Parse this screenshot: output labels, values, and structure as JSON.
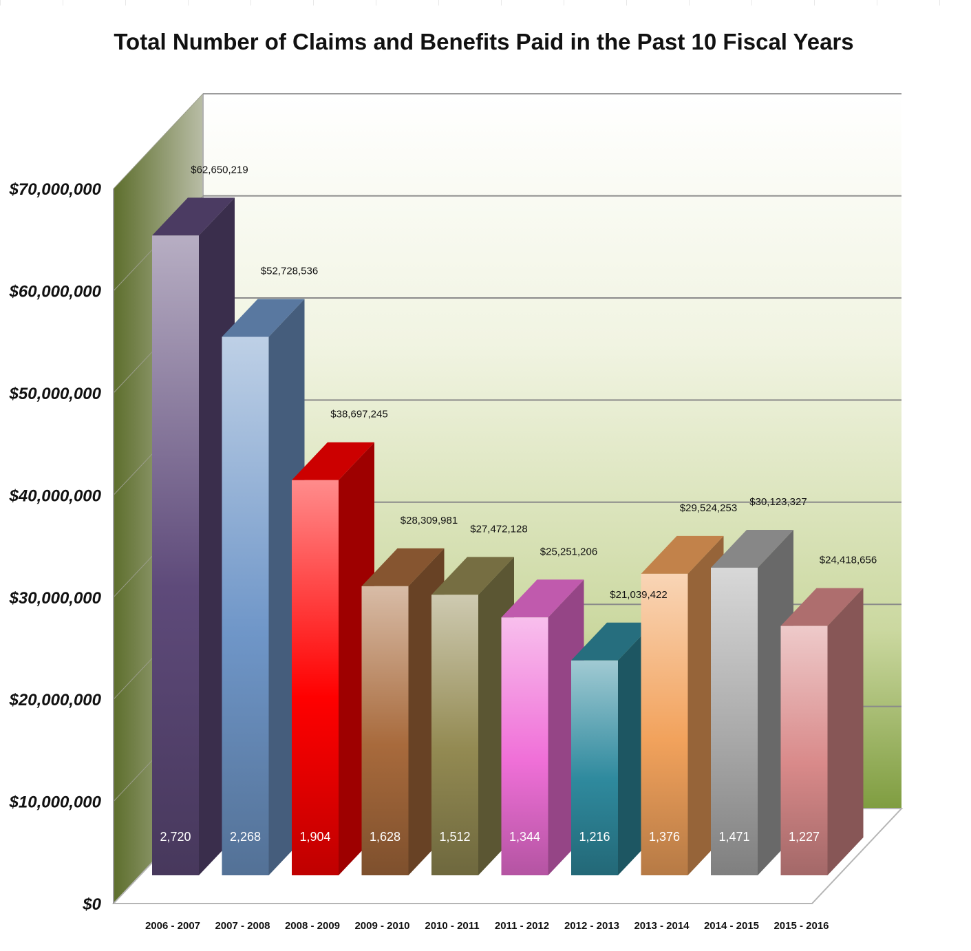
{
  "chart_data": {
    "type": "bar",
    "title": "Total Number of Claims and Benefits Paid in the Past 10 Fiscal Years",
    "xlabel": "",
    "ylabel": "",
    "ylim": [
      0,
      70000000
    ],
    "y_ticks": [
      "$0",
      "$10,000,000",
      "$20,000,000",
      "$30,000,000",
      "$40,000,000",
      "$50,000,000",
      "$60,000,000",
      "$70,000,000"
    ],
    "grid": true,
    "legend": "none",
    "categories": [
      "2006 - 2007",
      "2007 - 2008",
      "2008 - 2009",
      "2009 - 2010",
      "2010 - 2011",
      "2011 - 2012",
      "2012 - 2013",
      "2013 - 2014",
      "2014 - 2015",
      "2015 - 2016"
    ],
    "series": [
      {
        "values": [
          62650219,
          52728536,
          38697245,
          28309981,
          27472128,
          25251206,
          21039422,
          29524253,
          30123327,
          24418656
        ],
        "value_labels": [
          "$62,650,219",
          "$52,728,536",
          "$38,697,245",
          "$28,309,981",
          "$27,472,128",
          "$25,251,206",
          "$21,039,422",
          "$29,524,253",
          "$30,123,327",
          "$24,418,656"
        ]
      }
    ],
    "claims": [
      2720,
      2268,
      1904,
      1628,
      1512,
      1344,
      1216,
      1376,
      1471,
      1227
    ],
    "claims_labels": [
      "2,720",
      "2,268",
      "1,904",
      "1,628",
      "1,512",
      "1,344",
      "1,216",
      "1,376",
      "1,471",
      "1,227"
    ],
    "bar_colors": [
      "#5e4a7a",
      "#6f96c8",
      "#ff0000",
      "#a86a3c",
      "#938a52",
      "#f070d8",
      "#2f8a9e",
      "#f2a25c",
      "#a9a9a9",
      "#d98a8a"
    ]
  }
}
